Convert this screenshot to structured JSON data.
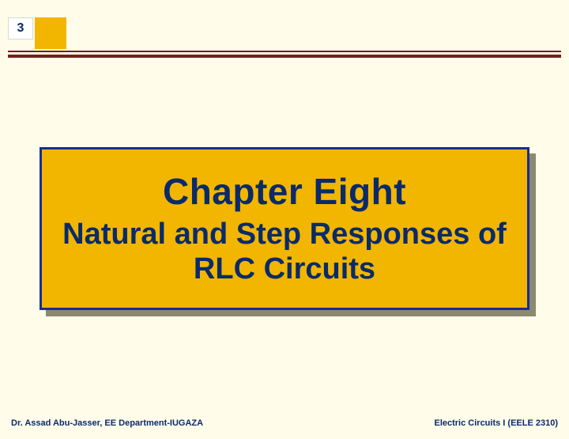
{
  "page": {
    "number": "3",
    "background_color": "#fffce9",
    "accent_color": "#f2b600",
    "rule_color": "#7a1c1c",
    "card_border_color": "#1a2e8a",
    "text_color": "#0a2a6a",
    "shadow_color": "#8a8a70"
  },
  "title_card": {
    "chapter": "Chapter Eight",
    "subtitle": "Natural and Step Responses of RLC Circuits",
    "chapter_fontsize": 46,
    "subtitle_fontsize": 38
  },
  "footer": {
    "left": "Dr. Assad Abu-Jasser, EE Department-IUGAZA",
    "right": "Electric Circuits I (EELE 2310)"
  }
}
